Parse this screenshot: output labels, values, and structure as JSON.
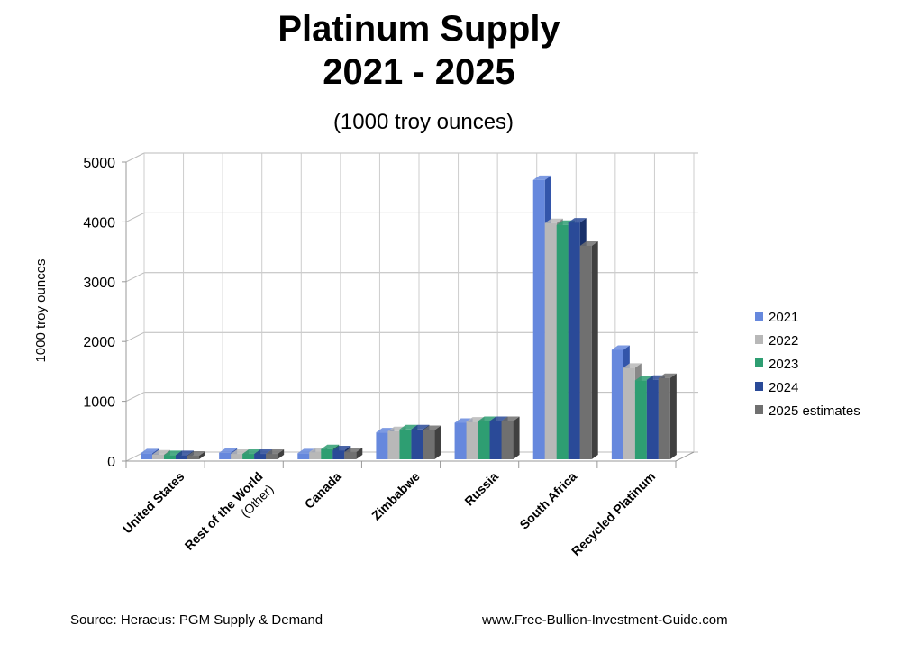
{
  "chart_data": {
    "type": "bar",
    "title_line1": "Platinum Supply",
    "title_line2": "2021 - 2025",
    "subtitle": "(1000 troy ounces)",
    "ylabel": "1000 troy ounces",
    "ylim": [
      0,
      5000
    ],
    "yticks": [
      "0",
      "1000",
      "2000",
      "3000",
      "4000",
      "5000"
    ],
    "grid": true,
    "legend_position": "right",
    "categories": [
      "United States",
      "Rest of the World",
      "Canada",
      "Zimbabwe",
      "Russia",
      "South Africa",
      "Recycled Platinum"
    ],
    "category_notes": [
      "",
      "(Other)",
      "",
      "",
      "",
      "",
      ""
    ],
    "series": [
      {
        "name": "2021",
        "color": "#6688dd",
        "side": "#3355aa",
        "values": [
          130,
          140,
          130,
          480,
          640,
          4700,
          1860
        ]
      },
      {
        "name": "2022",
        "color": "#b8b8b8",
        "side": "#888888",
        "values": [
          110,
          120,
          150,
          500,
          660,
          3980,
          1560
        ]
      },
      {
        "name": "2023",
        "color": "#2e9e72",
        "side": "#1d6e4e",
        "values": [
          100,
          120,
          200,
          530,
          670,
          3950,
          1350
        ]
      },
      {
        "name": "2024",
        "color": "#2a4a98",
        "side": "#18306a",
        "values": [
          100,
          120,
          180,
          530,
          670,
          3990,
          1360
        ]
      },
      {
        "name": "2025 estimates",
        "color": "#707070",
        "side": "#404040",
        "values": [
          90,
          120,
          150,
          520,
          670,
          3600,
          1390
        ]
      }
    ]
  },
  "footer": {
    "source": "Source: Heraeus: PGM Supply & Demand",
    "website": "www.Free-Bullion-Investment-Guide.com"
  }
}
